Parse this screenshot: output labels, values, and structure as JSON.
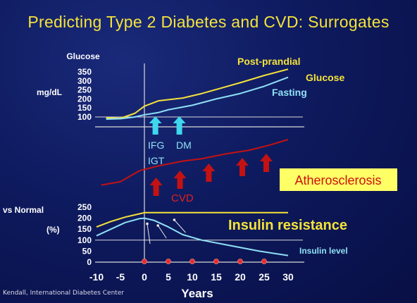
{
  "slide": {
    "title": "Predicting Type 2 Diabetes and CVD: Surrogates",
    "credit": "Kendall, International Diabetes Center"
  },
  "colors": {
    "background": "#0e1a5e",
    "yellow": "#f5e33a",
    "cyan": "#8fe0f5",
    "arrow_cyan": "#3ed7ee",
    "red": "#c41212",
    "axis": "#d9d9d9",
    "label_box": "#ffff66"
  },
  "chart_data": {
    "type": "line",
    "x_axis": {
      "label": "Years",
      "ticks": [
        -10,
        -5,
        0,
        5,
        10,
        15,
        20,
        25,
        30
      ],
      "range": [
        -10,
        30
      ]
    },
    "panels": [
      {
        "name": "glucose",
        "y_title": "Glucose",
        "y_unit": "mg/dL",
        "y_ticks": [
          100,
          150,
          200,
          250,
          300,
          350
        ],
        "ylim": [
          60,
          370
        ],
        "series": [
          {
            "name": "Post-prandial Glucose",
            "label_line1": "Post-prandial",
            "label_line2": "Glucose",
            "color": "#f5e33a",
            "x": [
              -8,
              -5,
              -2,
              0,
              3,
              8,
              12,
              16,
              20,
              25,
              30
            ],
            "y": [
              95,
              93,
              120,
              160,
              190,
              205,
              230,
              260,
              290,
              330,
              365
            ]
          },
          {
            "name": "Fasting",
            "label_line1": "Fasting",
            "color": "#8fe0f5",
            "x": [
              -8,
              -5,
              -2,
              0,
              3,
              5,
              10,
              15,
              20,
              25,
              30
            ],
            "y": [
              88,
              90,
              100,
              112,
              125,
              140,
              165,
              200,
              230,
              270,
              320
            ]
          }
        ]
      },
      {
        "name": "cvd",
        "series": [
          {
            "name": "Atherosclerosis",
            "color": "#c41212",
            "x": [
              -9,
              -5,
              -1,
              3,
              8,
              12,
              17,
              22,
              26,
              30
            ],
            "y": [
              0.05,
              0.12,
              0.35,
              0.45,
              0.55,
              0.6,
              0.7,
              0.78,
              0.88,
              1.0
            ]
          }
        ]
      },
      {
        "name": "insulin",
        "y_title": "vs Normal",
        "y_unit": "(%)",
        "y_ticks": [
          0,
          50,
          100,
          150,
          200,
          250
        ],
        "ylim": [
          0,
          260
        ],
        "series": [
          {
            "name": "Insulin resistance",
            "color": "#f5e33a",
            "x": [
              -10,
              -7,
              -4,
              -1,
              0,
              5,
              10,
              15,
              20,
              25,
              30
            ],
            "y": [
              160,
              185,
              205,
              220,
              225,
              225,
              225,
              225,
              225,
              225,
              225
            ]
          },
          {
            "name": "Insulin level",
            "color": "#8fe0f5",
            "x": [
              -10,
              -7,
              -4,
              -1,
              0,
              2,
              5,
              8,
              12,
              18,
              24,
              30
            ],
            "y": [
              120,
              150,
              180,
              198,
              200,
              190,
              160,
              125,
              100,
              75,
              50,
              30
            ]
          }
        ]
      }
    ],
    "annotations": {
      "ifg": "IFG",
      "igt": "IGT",
      "dm": "DM",
      "cvd": "CVD",
      "atherosclerosis": "Atherosclerosis",
      "insulin_resistance": "Insulin resistance",
      "insulin_level": "Insulin level"
    },
    "markers": {
      "ifg_dm_arrows_x": [
        2,
        7
      ],
      "cvd_arrows_x": [
        2,
        7,
        13,
        20,
        25
      ],
      "event_dots_x": [
        0,
        5,
        10,
        15,
        20,
        25
      ],
      "insulin_pointer_arrows_x": [
        0,
        4,
        8
      ]
    }
  }
}
